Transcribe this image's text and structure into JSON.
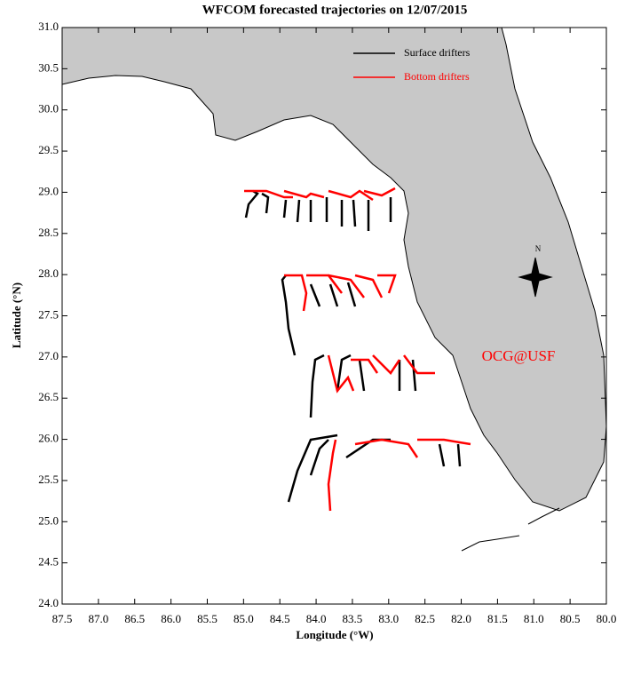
{
  "chart_data": {
    "type": "map",
    "title": "WFCOM forecasted trajectories on 12/07/2015",
    "xlabel": "Longitude (°W)",
    "ylabel": "Latitude (°N)",
    "xlim": [
      87.5,
      80.0
    ],
    "ylim": [
      24.0,
      31.0
    ],
    "xticks": [
      87.5,
      {
        "value": 87,
        "label": "87.0"
      },
      86.5,
      {
        "value": 86,
        "label": "86.0"
      },
      85.5,
      {
        "value": 85,
        "label": "85.0"
      },
      84.5,
      {
        "value": 84,
        "label": "84.0"
      },
      83.5,
      {
        "value": 83,
        "label": "83.0"
      },
      82.5,
      {
        "value": 82,
        "label": "82.0"
      },
      81.5,
      {
        "value": 81,
        "label": "81.0"
      },
      80.5,
      {
        "value": 80,
        "label": "80.0"
      }
    ],
    "yticks": [
      {
        "value": 24,
        "label": "24.0"
      },
      24.5,
      {
        "value": 25,
        "label": "25.0"
      },
      25.5,
      {
        "value": 26,
        "label": "26.0"
      },
      26.5,
      {
        "value": 27,
        "label": "27.0"
      },
      27.5,
      {
        "value": 28,
        "label": "28.0"
      },
      28.5,
      {
        "value": 29,
        "label": "29.0"
      },
      29.5,
      {
        "value": 30,
        "label": "30.0"
      },
      30.5,
      {
        "value": 31,
        "label": "31.0"
      }
    ],
    "series": [
      {
        "name": "Surface drifters",
        "color": "#000000"
      },
      {
        "name": "Bottom drifters",
        "color": "#ff0000"
      }
    ],
    "annotation": "OCG@USF",
    "compass": "N"
  }
}
